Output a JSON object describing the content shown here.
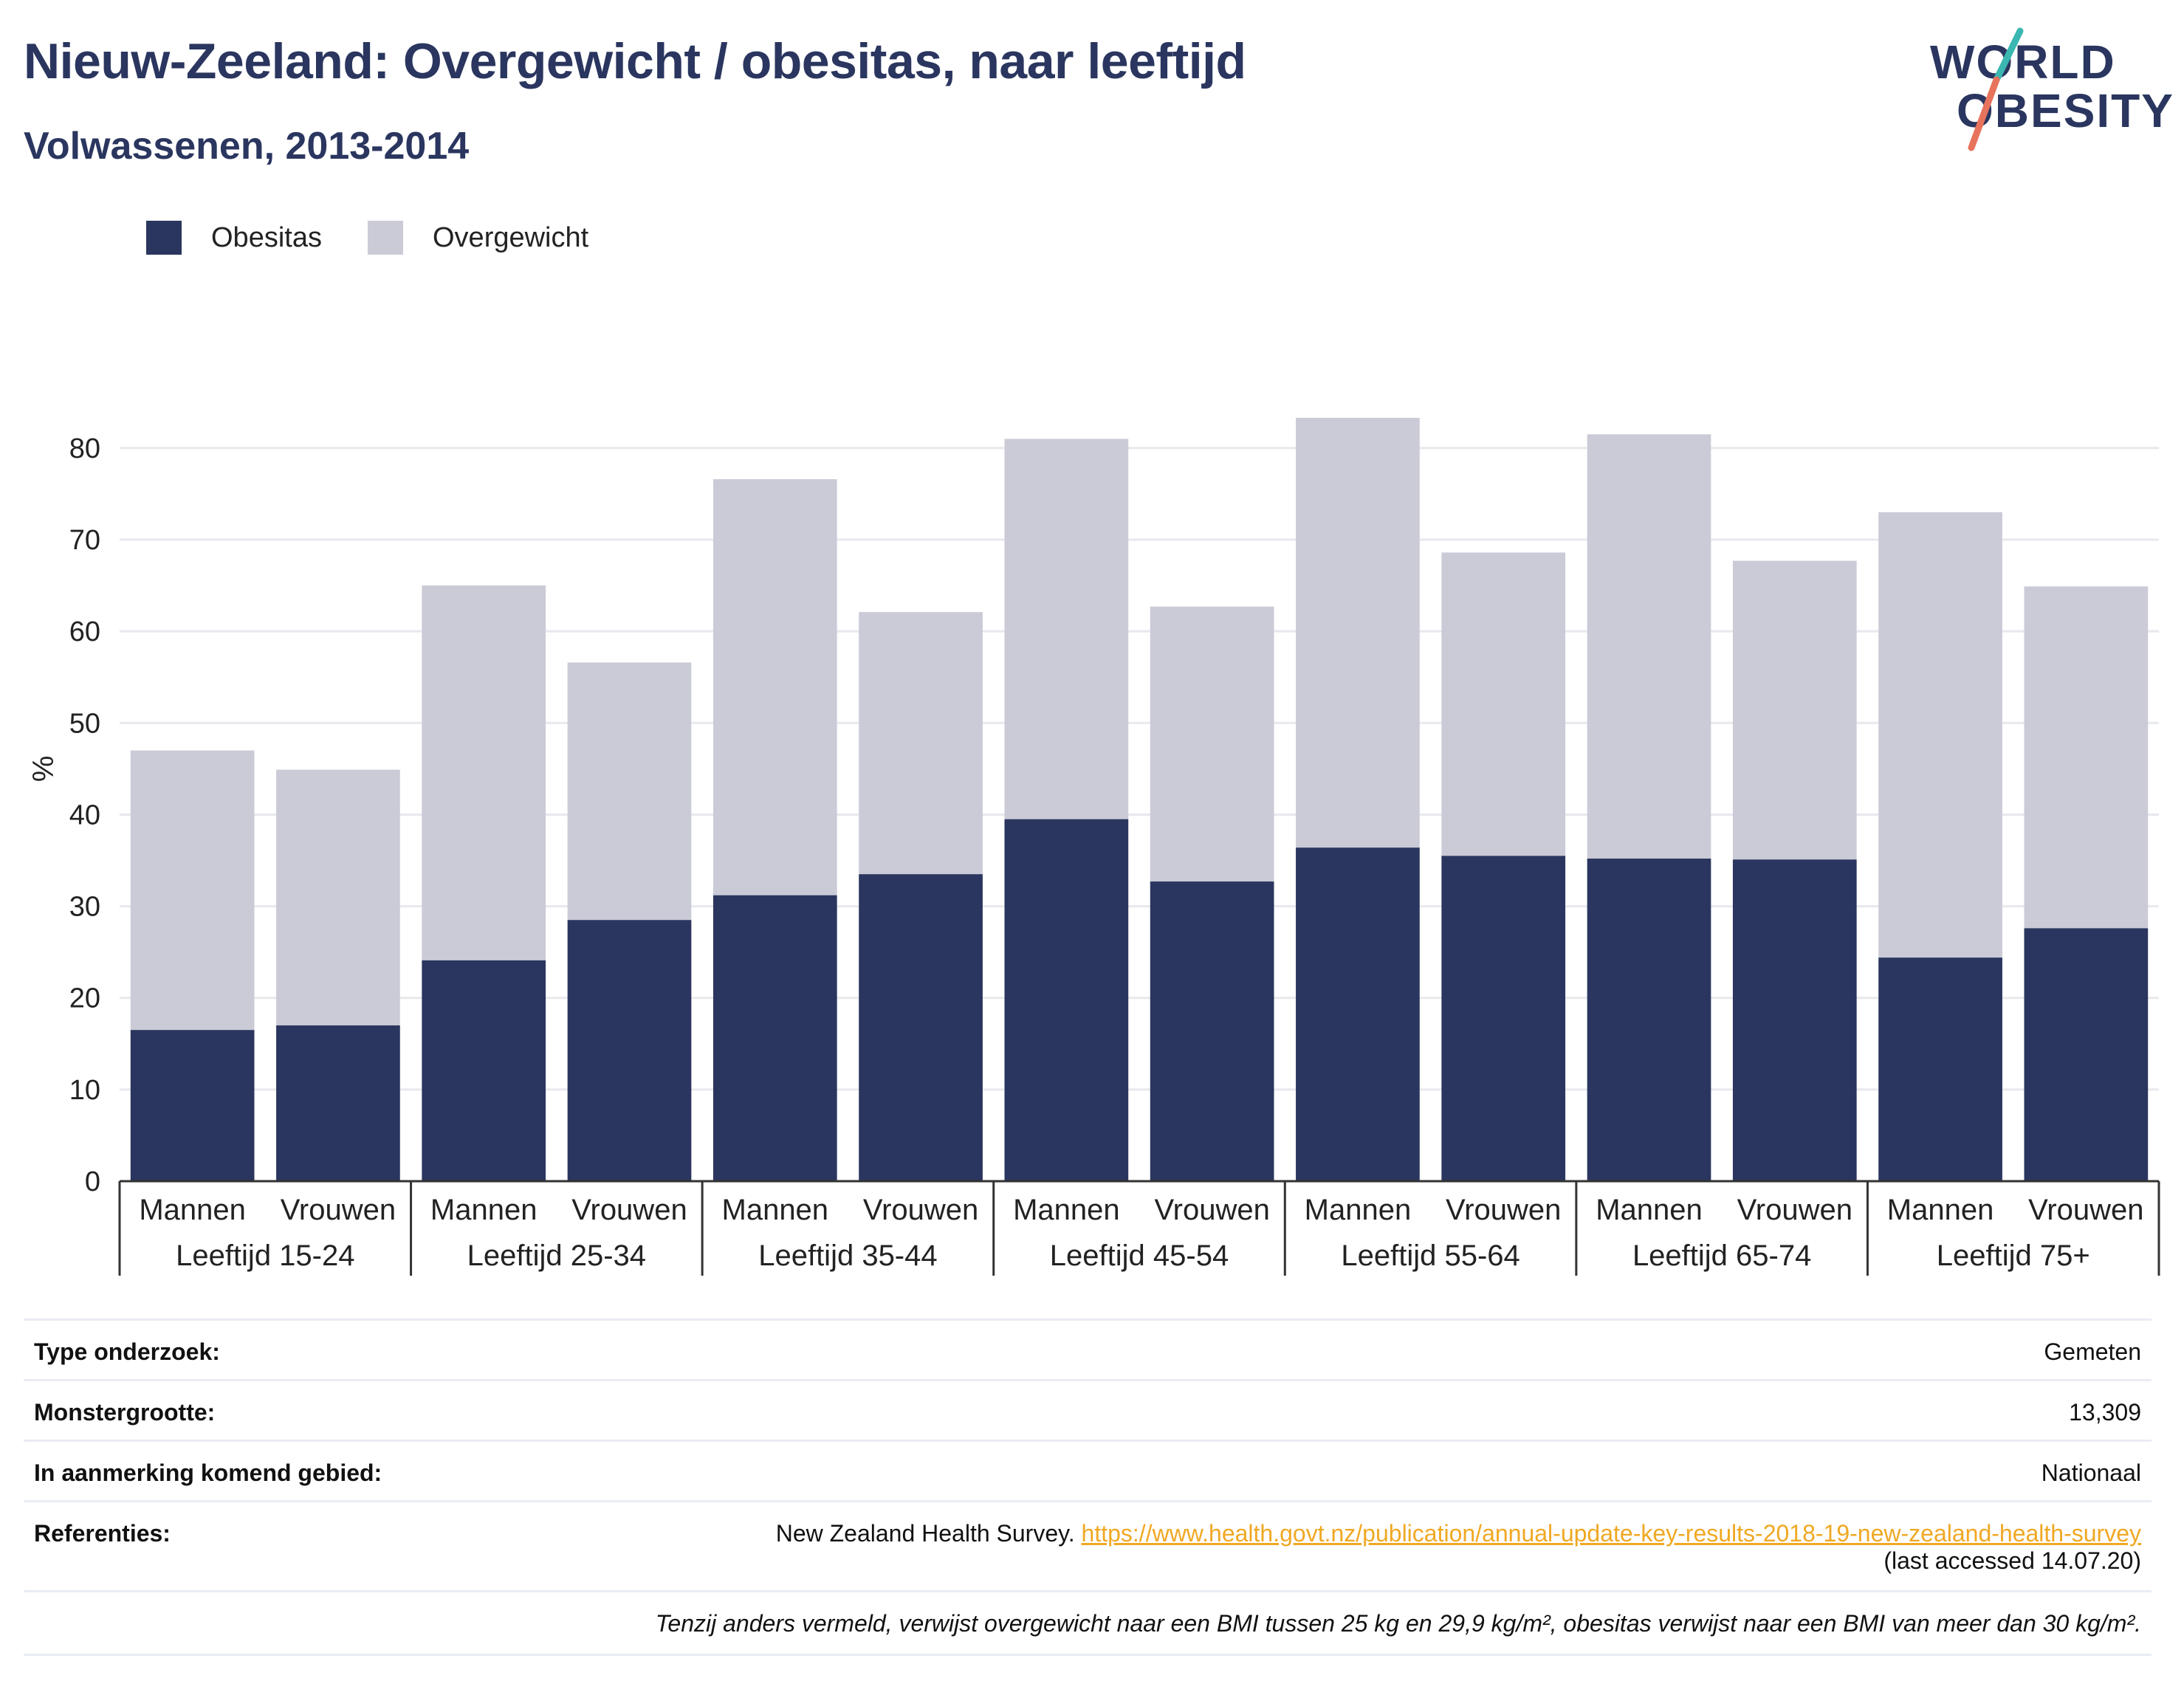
{
  "header": {
    "title": "Nieuw-Zeeland: Overgewicht / obesitas, naar leeftijd",
    "subtitle": "Volwassenen, 2013-2014"
  },
  "logo": {
    "line1": "WORLD",
    "line2": "OBESITY",
    "accent_teal": "#3ab7b1",
    "accent_coral": "#e8735c"
  },
  "colors": {
    "obesitas": "#2a365f",
    "overgewicht": "#cacbd7",
    "axis": "#333333",
    "grid": "#e8e8ee"
  },
  "chart_data": {
    "type": "bar",
    "stacked": true,
    "ylabel": "%",
    "ylim": [
      0,
      87
    ],
    "yticks": [
      0,
      10,
      20,
      30,
      40,
      50,
      60,
      70,
      80
    ],
    "grid": true,
    "legend_position": "top-left",
    "groups": [
      "Leeftijd 15-24",
      "Leeftijd 25-34",
      "Leeftijd 35-44",
      "Leeftijd 45-54",
      "Leeftijd 55-64",
      "Leeftijd 65-74",
      "Leeftijd 75+"
    ],
    "subcategories": [
      "Mannen",
      "Vrouwen"
    ],
    "series": [
      {
        "name": "Obesitas",
        "values": [
          16.5,
          17.0,
          24.1,
          28.5,
          31.2,
          33.5,
          39.5,
          32.7,
          36.4,
          35.5,
          35.2,
          35.1,
          24.4,
          27.6
        ]
      },
      {
        "name": "Overgewicht",
        "values": [
          30.5,
          27.9,
          40.9,
          28.1,
          45.4,
          28.6,
          41.5,
          30.0,
          46.9,
          33.1,
          46.3,
          32.6,
          48.6,
          37.3
        ]
      }
    ]
  },
  "info": {
    "rows": [
      {
        "key": "Type onderzoek:",
        "value": "Gemeten"
      },
      {
        "key": "Monstergrootte:",
        "value": "13,309"
      },
      {
        "key": "In aanmerking komend gebied:",
        "value": "Nationaal"
      }
    ],
    "references": {
      "key": "Referenties:",
      "source": "New Zealand Health Survey.",
      "link": "https://www.health.govt.nz/publication/annual-update-key-results-2018-19-new-zealand-health-survey",
      "accessed": "(last accessed 14.07.20)"
    },
    "note": "Tenzij anders vermeld, verwijst overgewicht naar een BMI tussen 25 kg en 29,9 kg/m², obesitas verwijst naar een BMI van meer dan 30 kg/m²."
  }
}
